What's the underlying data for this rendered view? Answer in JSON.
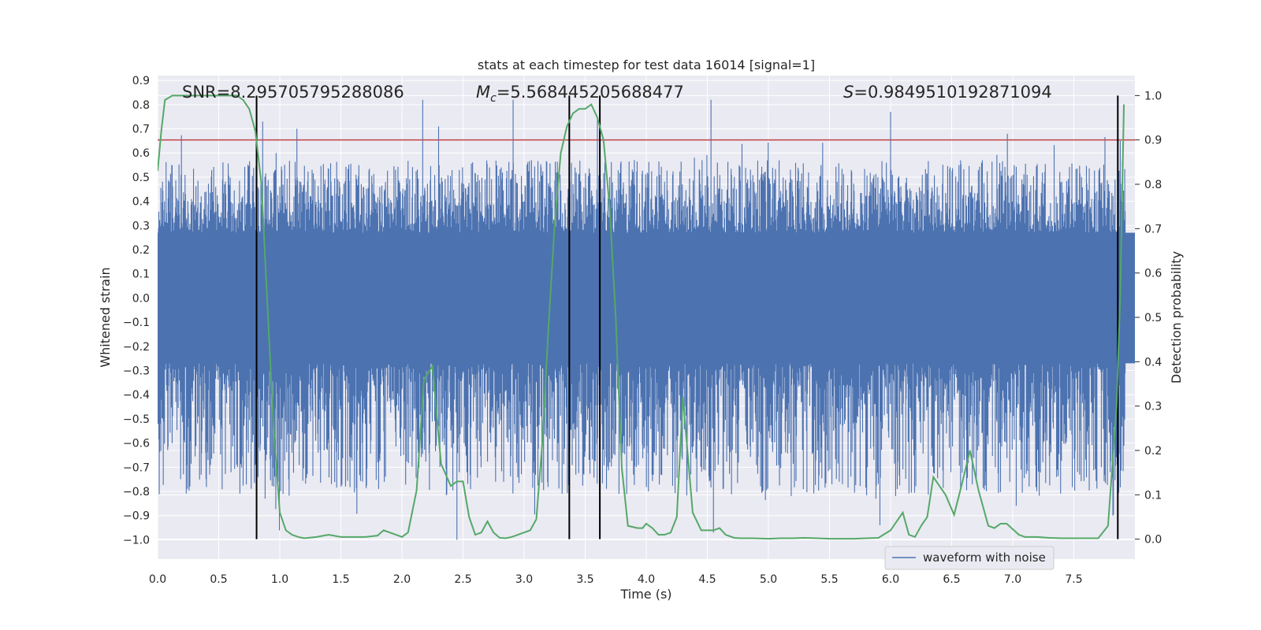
{
  "chart_data": {
    "type": "line",
    "title": "stats at each timestep for test data 16014 [signal=1]",
    "xlabel": "Time (s)",
    "ylabel": "Whitened strain",
    "y2label": "Detection probability",
    "xlim": [
      0.0,
      8.0
    ],
    "ylim": [
      -1.08,
      0.92
    ],
    "y2lim": [
      -0.045,
      1.045
    ],
    "grid": true,
    "legend_position": "lower-right",
    "xticks": [
      "0.0",
      "0.5",
      "1.0",
      "1.5",
      "2.0",
      "2.5",
      "3.0",
      "3.5",
      "4.0",
      "4.5",
      "5.0",
      "5.5",
      "6.0",
      "6.5",
      "7.0",
      "7.5"
    ],
    "yticks": [
      "0.9",
      "0.8",
      "0.7",
      "0.6",
      "0.5",
      "0.4",
      "0.3",
      "0.2",
      "0.1",
      "0.0",
      "−0.1",
      "−0.2",
      "−0.3",
      "−0.4",
      "−0.5",
      "−0.6",
      "−0.7",
      "−0.8",
      "−0.9",
      "−1.0"
    ],
    "y2ticks": [
      "1.0",
      "0.9",
      "0.8",
      "0.7",
      "0.6",
      "0.5",
      "0.4",
      "0.3",
      "0.2",
      "0.1",
      "0.0"
    ],
    "annotations": {
      "snr": "SNR=8.295705795288086",
      "mc_symbol": "M",
      "mc_sub": "c",
      "mc_value": "=5.568445205688477",
      "s_symbol": "S",
      "s_value": "=0.9849510192871094"
    },
    "threshold": {
      "value": 0.9,
      "color": "#c44e52"
    },
    "vertical_markers": [
      0.81,
      3.37,
      3.62,
      7.86
    ],
    "series": [
      {
        "name": "waveform with noise",
        "color": "#4c72b0",
        "kind": "noise-waveform",
        "band_core": [
          -0.27,
          0.27
        ],
        "typical_range": [
          -0.45,
          0.45
        ],
        "extreme_peaks": [
          {
            "t": 0.86,
            "v": 0.73
          },
          {
            "t": 0.88,
            "v": -0.83
          },
          {
            "t": 0.97,
            "v": 0.6
          },
          {
            "t": 0.98,
            "v": -0.49
          },
          {
            "t": 1.1,
            "v": -0.64
          },
          {
            "t": 1.14,
            "v": 0.7
          },
          {
            "t": 1.48,
            "v": -0.67
          },
          {
            "t": 2.17,
            "v": 0.82
          },
          {
            "t": 2.3,
            "v": 0.71
          },
          {
            "t": 2.45,
            "v": -1.0
          },
          {
            "t": 2.91,
            "v": 0.82
          },
          {
            "t": 3.6,
            "v": 0.74
          },
          {
            "t": 4.53,
            "v": 0.82
          },
          {
            "t": 4.55,
            "v": -0.97
          },
          {
            "t": 5.58,
            "v": -0.76
          },
          {
            "t": 6.0,
            "v": 0.77
          },
          {
            "t": 5.88,
            "v": -0.83
          },
          {
            "t": 7.82,
            "v": -0.9
          },
          {
            "t": 7.88,
            "v": 0.65
          }
        ]
      },
      {
        "name": "detection probability",
        "color": "#55a868",
        "axis": "right",
        "x": [
          0.0,
          0.03,
          0.06,
          0.12,
          0.2,
          0.3,
          0.4,
          0.5,
          0.6,
          0.65,
          0.7,
          0.75,
          0.8,
          0.85,
          0.9,
          0.95,
          1.0,
          1.05,
          1.1,
          1.15,
          1.2,
          1.3,
          1.4,
          1.5,
          1.6,
          1.7,
          1.8,
          1.85,
          1.9,
          2.0,
          2.05,
          2.12,
          2.18,
          2.25,
          2.32,
          2.4,
          2.45,
          2.5,
          2.55,
          2.6,
          2.65,
          2.7,
          2.75,
          2.8,
          2.85,
          2.9,
          3.0,
          3.05,
          3.1,
          3.15,
          3.2,
          3.25,
          3.3,
          3.35,
          3.4,
          3.45,
          3.5,
          3.55,
          3.6,
          3.65,
          3.7,
          3.75,
          3.8,
          3.85,
          3.93,
          3.97,
          4.0,
          4.05,
          4.1,
          4.15,
          4.2,
          4.25,
          4.3,
          4.38,
          4.45,
          4.52,
          4.55,
          4.6,
          4.65,
          4.72,
          4.77,
          4.82,
          4.87,
          5.0,
          5.1,
          5.2,
          5.3,
          5.4,
          5.5,
          5.6,
          5.7,
          5.8,
          5.9,
          6.0,
          6.1,
          6.15,
          6.2,
          6.25,
          6.3,
          6.35,
          6.45,
          6.52,
          6.58,
          6.65,
          6.72,
          6.8,
          6.85,
          6.9,
          6.95,
          7.05,
          7.1,
          7.15,
          7.2,
          7.3,
          7.4,
          7.5,
          7.6,
          7.7,
          7.78,
          7.85,
          7.88,
          7.91
        ],
        "values": [
          0.83,
          0.92,
          0.99,
          1.0,
          1.0,
          1.0,
          1.0,
          1.0,
          1.0,
          1.0,
          0.99,
          0.97,
          0.92,
          0.8,
          0.52,
          0.25,
          0.06,
          0.02,
          0.01,
          0.005,
          0.002,
          0.005,
          0.01,
          0.005,
          0.005,
          0.005,
          0.008,
          0.02,
          0.015,
          0.005,
          0.015,
          0.11,
          0.36,
          0.39,
          0.17,
          0.12,
          0.13,
          0.13,
          0.05,
          0.01,
          0.015,
          0.04,
          0.015,
          0.003,
          0.002,
          0.005,
          0.015,
          0.02,
          0.045,
          0.22,
          0.48,
          0.71,
          0.87,
          0.93,
          0.96,
          0.97,
          0.97,
          0.98,
          0.95,
          0.9,
          0.75,
          0.5,
          0.16,
          0.03,
          0.025,
          0.025,
          0.035,
          0.025,
          0.01,
          0.01,
          0.015,
          0.05,
          0.32,
          0.06,
          0.02,
          0.02,
          0.02,
          0.025,
          0.01,
          0.003,
          0.002,
          0.002,
          0.002,
          0.001,
          0.002,
          0.002,
          0.003,
          0.002,
          0.001,
          0.001,
          0.001,
          0.002,
          0.003,
          0.02,
          0.06,
          0.01,
          0.005,
          0.03,
          0.05,
          0.14,
          0.1,
          0.055,
          0.12,
          0.2,
          0.11,
          0.03,
          0.025,
          0.035,
          0.035,
          0.01,
          0.005,
          0.005,
          0.005,
          0.003,
          0.002,
          0.002,
          0.002,
          0.002,
          0.03,
          0.3,
          0.55,
          0.98
        ]
      }
    ]
  }
}
